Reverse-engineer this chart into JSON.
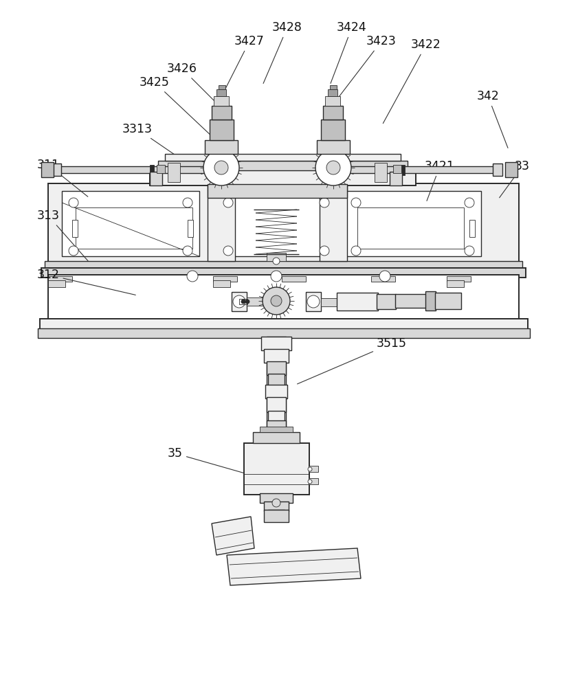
{
  "bg_color": "#ffffff",
  "lc": "#2a2a2a",
  "lc2": "#555555",
  "lw": 1.0,
  "tlw": 0.6,
  "thk": 1.4,
  "fc_white": "#ffffff",
  "fc_light": "#f0f0f0",
  "fc_gray": "#d8d8d8",
  "fc_mid": "#c0c0c0",
  "fc_dark": "#a0a0a0",
  "font_size": 12
}
